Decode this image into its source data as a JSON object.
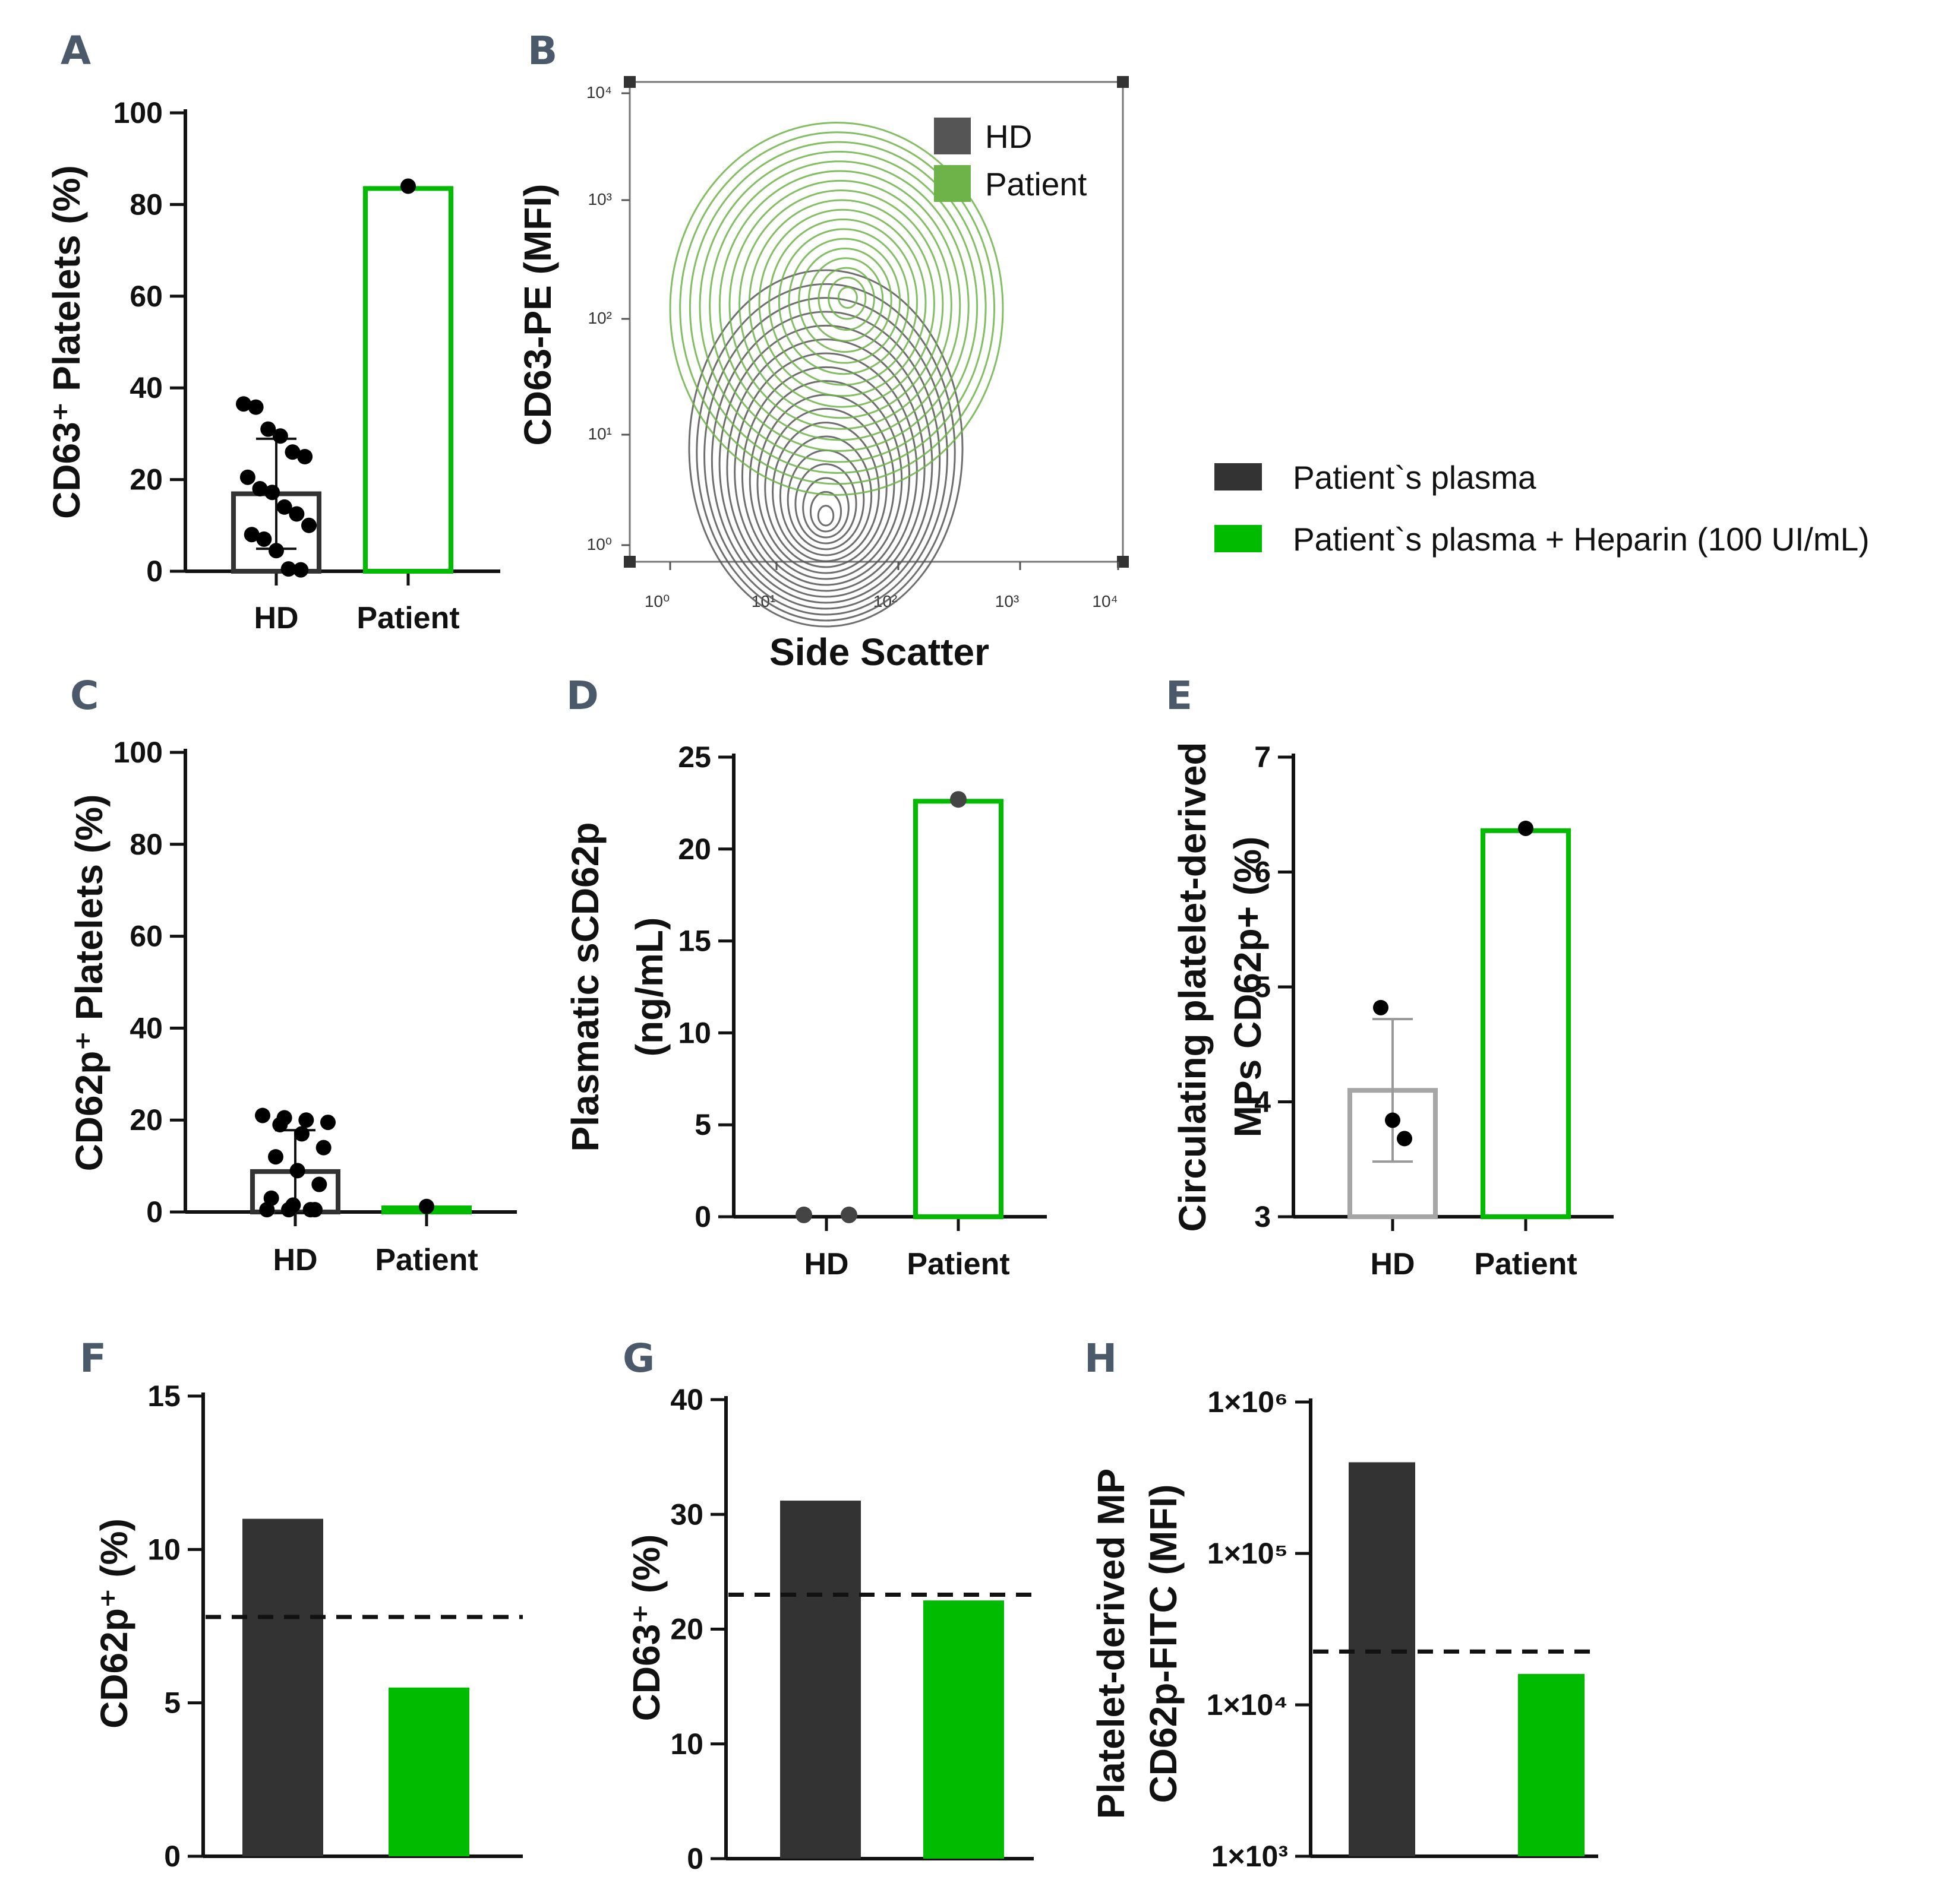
{
  "chart_data": [
    {
      "id": "A",
      "type": "bar",
      "panel_label": "A",
      "ylabel": "CD63⁺ Platelets (%)",
      "categories": [
        "HD",
        "Patient"
      ],
      "values": [
        16.9,
        83.5
      ],
      "error": [
        12.0,
        null
      ],
      "ylim": [
        0,
        100
      ],
      "yticks": [
        "0",
        "20",
        "40",
        "60",
        "80",
        "100"
      ],
      "points": {
        "HD": [
          36.5,
          35.8,
          31.0,
          29.5,
          26.0,
          25.0,
          20.5,
          18.0,
          17.2,
          14.0,
          12.5,
          10.0,
          8.0,
          7.0,
          4.5,
          0.5,
          0.2
        ],
        "Patient": [
          84.0
        ]
      }
    },
    {
      "id": "B",
      "type": "scatter",
      "panel_label": "B",
      "title": "",
      "xlabel": "Side Scatter",
      "ylabel": "CD63-PE (MFI)",
      "x_scale": "log",
      "y_scale": "log",
      "x_ticks": [
        "10⁰",
        "10¹",
        "10²",
        "10³",
        "10⁴"
      ],
      "y_ticks": [
        "10⁰",
        "10¹",
        "10²",
        "10³",
        "10⁴"
      ],
      "series": [
        {
          "name": "HD",
          "color": "#555555",
          "center": [
            1.6,
            0.95
          ]
        },
        {
          "name": "Patient",
          "color": "#6db34a",
          "center": [
            1.7,
            2.1
          ]
        }
      ]
    },
    {
      "id": "C",
      "type": "bar",
      "panel_label": "C",
      "ylabel": "CD62p⁺ Platelets (%)",
      "categories": [
        "HD",
        "Patient"
      ],
      "values": [
        8.8,
        0.9
      ],
      "error": [
        9.0,
        null
      ],
      "ylim": [
        0,
        100
      ],
      "yticks": [
        "0",
        "20",
        "40",
        "60",
        "80",
        "100"
      ],
      "points": {
        "HD": [
          21.0,
          20.5,
          20.0,
          19.5,
          19.0,
          17.0,
          14.0,
          12.0,
          9.0,
          6.0,
          3.0,
          1.5,
          0.5,
          0.5,
          0.5,
          0.5
        ],
        "Patient": [
          1.2
        ]
      }
    },
    {
      "id": "D",
      "type": "bar",
      "panel_label": "D",
      "ylabel": [
        "Plasmatic sCD62p",
        "(ng/mL)"
      ],
      "categories": [
        "HD",
        "Patient"
      ],
      "values": [
        0.0,
        22.6
      ],
      "ylim": [
        0,
        25
      ],
      "yticks": [
        "0",
        "5",
        "10",
        "15",
        "20",
        "25"
      ],
      "points": {
        "HD": [
          0.1,
          0.1
        ],
        "Patient": [
          22.7
        ]
      }
    },
    {
      "id": "E",
      "type": "bar",
      "panel_label": "E",
      "ylabel": [
        "Circulating platelet-derived",
        "MPs CD62p+ (%)"
      ],
      "categories": [
        "HD",
        "Patient"
      ],
      "values": [
        4.1,
        6.36
      ],
      "error": [
        0.62,
        null
      ],
      "ylim": [
        3,
        7
      ],
      "yticks": [
        "3",
        "4",
        "5",
        "6",
        "7"
      ],
      "points": {
        "HD": [
          4.82,
          3.84,
          3.68
        ],
        "Patient": [
          6.38
        ]
      }
    },
    {
      "id": "F",
      "type": "bar",
      "panel_label": "F",
      "ylabel": "CD62p⁺ (%)",
      "categories": [
        "Patient`s plasma",
        "Patient`s plasma + Heparin (100 UI/mL)"
      ],
      "values": [
        11.0,
        5.5
      ],
      "reference_line": 7.8,
      "ylim": [
        0,
        15
      ],
      "yticks": [
        "0",
        "5",
        "10",
        "15"
      ]
    },
    {
      "id": "G",
      "type": "bar",
      "panel_label": "G",
      "ylabel": "CD63⁺ (%)",
      "categories": [
        "Patient`s plasma",
        "Patient`s plasma + Heparin (100 UI/mL)"
      ],
      "values": [
        31.2,
        22.5
      ],
      "reference_line": 23.0,
      "ylim": [
        0,
        40
      ],
      "yticks": [
        "0",
        "10",
        "20",
        "30",
        "40"
      ]
    },
    {
      "id": "H",
      "type": "bar",
      "panel_label": "H",
      "ylabel": [
        "Platelet-derived MP",
        "CD62p-FITC (MFI)"
      ],
      "categories": [
        "Patient`s plasma",
        "Patient`s plasma + Heparin (100 UI/mL)"
      ],
      "values": [
        400000,
        16000
      ],
      "reference_line": 22500,
      "y_scale": "log",
      "ylim": [
        1000,
        1000000
      ],
      "yticks": [
        "1×10³",
        "1×10⁴",
        "1×10⁵",
        "1×10⁶"
      ]
    }
  ],
  "legend": {
    "items": [
      {
        "label": "Patient`s plasma",
        "color": "#333333"
      },
      {
        "label": "Patient`s plasma + Heparin (100 UI/mL)",
        "color": "#00bb00"
      }
    ]
  },
  "colors": {
    "hd": "#333333",
    "hd_light": "#a6a6a6",
    "patient": "#00bb00",
    "heparin": "#00bb00"
  }
}
